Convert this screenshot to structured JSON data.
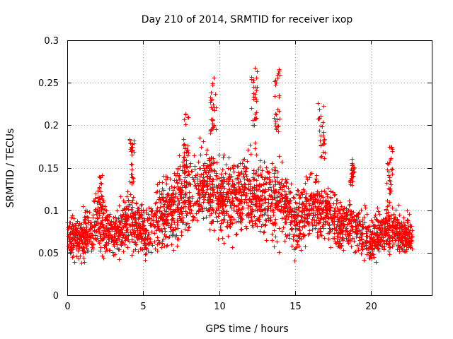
{
  "chart_data": {
    "type": "scatter",
    "title": "Day 210 of 2014, SRMTID for receiver ixop",
    "xlabel": "GPS time / hours",
    "ylabel": "SRMTID / TECUs",
    "xlim": [
      0,
      24
    ],
    "ylim": [
      0,
      0.3
    ],
    "xticks": [
      0,
      5,
      10,
      15,
      20
    ],
    "xtick_labels": [
      "0",
      "5",
      "10",
      "15",
      "20"
    ],
    "yticks": [
      0,
      0.05,
      0.1,
      0.15,
      0.2,
      0.25,
      0.3
    ],
    "ytick_labels": [
      "0",
      "0.05",
      "0.1",
      "0.15",
      "0.2",
      "0.25",
      "0.3"
    ],
    "grid": true,
    "marker": "+",
    "color": "#ff0000",
    "data_span_hours": [
      0,
      22.7
    ],
    "approx_point_count": 3000,
    "envelope": {
      "x": [
        0,
        1,
        2,
        3,
        4,
        5,
        6,
        7,
        8,
        9,
        10,
        11,
        12,
        13,
        14,
        15,
        16,
        17,
        18,
        19,
        20,
        21,
        22,
        22.7
      ],
      "median": [
        0.072,
        0.068,
        0.085,
        0.07,
        0.09,
        0.075,
        0.09,
        0.105,
        0.12,
        0.13,
        0.115,
        0.115,
        0.12,
        0.11,
        0.115,
        0.09,
        0.105,
        0.1,
        0.085,
        0.08,
        0.065,
        0.08,
        0.072,
        0.07
      ],
      "spread": [
        0.018,
        0.02,
        0.025,
        0.02,
        0.025,
        0.022,
        0.03,
        0.035,
        0.035,
        0.035,
        0.035,
        0.035,
        0.035,
        0.035,
        0.035,
        0.03,
        0.03,
        0.028,
        0.025,
        0.022,
        0.02,
        0.022,
        0.018,
        0.018
      ]
    },
    "bursts": [
      {
        "x": [
          2.0,
          2.4
        ],
        "y": [
          0.1,
          0.145
        ]
      },
      {
        "x": [
          4.1,
          4.4
        ],
        "y": [
          0.13,
          0.185
        ]
      },
      {
        "x": [
          7.6,
          8.0
        ],
        "y": [
          0.15,
          0.215
        ]
      },
      {
        "x": [
          9.4,
          9.8
        ],
        "y": [
          0.19,
          0.258
        ]
      },
      {
        "x": [
          12.1,
          12.5
        ],
        "y": [
          0.2,
          0.275
        ]
      },
      {
        "x": [
          13.6,
          14.0
        ],
        "y": [
          0.19,
          0.268
        ]
      },
      {
        "x": [
          16.5,
          17.0
        ],
        "y": [
          0.16,
          0.23
        ]
      },
      {
        "x": [
          18.6,
          18.9
        ],
        "y": [
          0.13,
          0.163
        ]
      },
      {
        "x": [
          21.0,
          21.4
        ],
        "y": [
          0.12,
          0.175
        ]
      }
    ]
  }
}
